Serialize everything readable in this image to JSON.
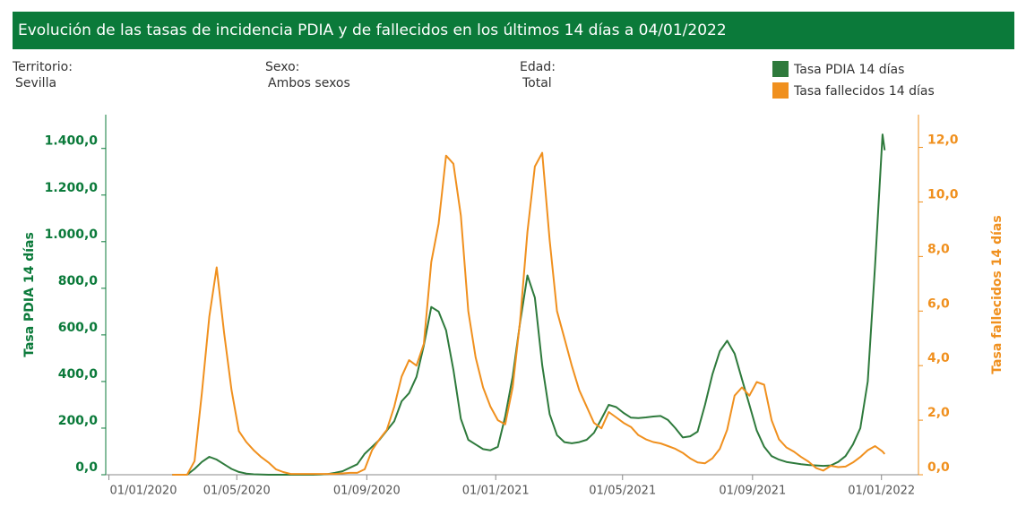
{
  "chart_data": {
    "type": "line",
    "title": "Evolución de las tasas de incidencia PDIA y de fallecidos en los últimos 14 días a 04/01/2022",
    "filters": [
      {
        "label": "Territorio:",
        "value": "Sevilla"
      },
      {
        "label": "Sexo:",
        "value": "Ambos sexos"
      },
      {
        "label": "Edad:",
        "value": "Total"
      }
    ],
    "ylabel": "Tasa PDIA 14 días",
    "y2label": "Tasa fallecidos 14 días",
    "x": [
      "2020-03-01",
      "2020-03-08",
      "2020-03-15",
      "2020-03-22",
      "2020-03-29",
      "2020-04-05",
      "2020-04-12",
      "2020-04-19",
      "2020-04-26",
      "2020-05-03",
      "2020-05-10",
      "2020-05-17",
      "2020-05-24",
      "2020-05-31",
      "2020-06-07",
      "2020-06-14",
      "2020-06-21",
      "2020-06-28",
      "2020-07-05",
      "2020-07-12",
      "2020-07-19",
      "2020-07-26",
      "2020-08-02",
      "2020-08-09",
      "2020-08-16",
      "2020-08-23",
      "2020-08-30",
      "2020-09-06",
      "2020-09-13",
      "2020-09-20",
      "2020-09-27",
      "2020-10-04",
      "2020-10-11",
      "2020-10-18",
      "2020-10-25",
      "2020-11-01",
      "2020-11-08",
      "2020-11-15",
      "2020-11-22",
      "2020-11-29",
      "2020-12-06",
      "2020-12-13",
      "2020-12-20",
      "2020-12-27",
      "2021-01-03",
      "2021-01-10",
      "2021-01-17",
      "2021-01-24",
      "2021-01-31",
      "2021-02-07",
      "2021-02-14",
      "2021-02-21",
      "2021-02-28",
      "2021-03-07",
      "2021-03-14",
      "2021-03-21",
      "2021-03-28",
      "2021-04-04",
      "2021-04-11",
      "2021-04-18",
      "2021-04-25",
      "2021-05-02",
      "2021-05-09",
      "2021-05-16",
      "2021-05-23",
      "2021-05-30",
      "2021-06-06",
      "2021-06-13",
      "2021-06-20",
      "2021-06-27",
      "2021-07-04",
      "2021-07-11",
      "2021-07-18",
      "2021-07-25",
      "2021-08-01",
      "2021-08-08",
      "2021-08-15",
      "2021-08-22",
      "2021-08-29",
      "2021-09-05",
      "2021-09-12",
      "2021-09-19",
      "2021-09-26",
      "2021-10-03",
      "2021-10-10",
      "2021-10-17",
      "2021-10-24",
      "2021-10-31",
      "2021-11-07",
      "2021-11-14",
      "2021-11-21",
      "2021-11-28",
      "2021-12-05",
      "2021-12-12",
      "2021-12-19",
      "2021-12-26",
      "2022-01-02",
      "2022-01-04"
    ],
    "series": [
      {
        "name": "Tasa PDIA 14 días",
        "color": "#2e7a3c",
        "axis": "y",
        "values": [
          0,
          0,
          0,
          25,
          55,
          77,
          65,
          45,
          25,
          12,
          5,
          2,
          1,
          0,
          0,
          0,
          0,
          0,
          0,
          0,
          1,
          3,
          8,
          15,
          30,
          45,
          90,
          120,
          150,
          190,
          230,
          315,
          350,
          420,
          555,
          720,
          700,
          620,
          450,
          240,
          150,
          130,
          110,
          105,
          120,
          250,
          420,
          650,
          855,
          760,
          470,
          260,
          170,
          140,
          135,
          140,
          150,
          180,
          240,
          300,
          290,
          265,
          245,
          243,
          246,
          250,
          252,
          235,
          200,
          160,
          165,
          185,
          300,
          430,
          530,
          575,
          520,
          410,
          300,
          190,
          120,
          80,
          65,
          55,
          50,
          45,
          42,
          40,
          38,
          40,
          55,
          80,
          130,
          200,
          400,
          900,
          1460,
          1392
        ]
      },
      {
        "name": "Tasa fallecidos 14 días",
        "color": "#f0901e",
        "axis": "y2",
        "values": [
          0,
          0,
          0,
          0.5,
          3.0,
          5.8,
          7.6,
          5.2,
          3.1,
          1.6,
          1.2,
          0.9,
          0.65,
          0.45,
          0.2,
          0.1,
          0.03,
          0.03,
          0.03,
          0.03,
          0.03,
          0.03,
          0.03,
          0.05,
          0.07,
          0.07,
          0.2,
          0.9,
          1.3,
          1.65,
          2.5,
          3.6,
          4.2,
          4.0,
          4.8,
          7.8,
          9.2,
          11.7,
          11.4,
          9.5,
          6.0,
          4.3,
          3.2,
          2.5,
          2.0,
          1.85,
          3.2,
          5.6,
          8.9,
          11.3,
          11.8,
          8.6,
          6.0,
          5.0,
          4.0,
          3.1,
          2.5,
          1.9,
          1.7,
          2.3,
          2.1,
          1.9,
          1.75,
          1.45,
          1.3,
          1.2,
          1.15,
          1.05,
          0.95,
          0.8,
          0.6,
          0.45,
          0.42,
          0.6,
          0.95,
          1.65,
          2.9,
          3.2,
          2.9,
          3.4,
          3.3,
          2.0,
          1.3,
          1.0,
          0.85,
          0.65,
          0.48,
          0.25,
          0.15,
          0.33,
          0.28,
          0.3,
          0.45,
          0.65,
          0.9,
          1.05,
          0.85,
          0.76
        ]
      }
    ],
    "xlim": [
      "2019-12-29",
      "2022-02-05"
    ],
    "xticks": [
      {
        "value": "2020-01-01",
        "label": "01/01/2020"
      },
      {
        "value": "2020-05-01",
        "label": "01/05/2020"
      },
      {
        "value": "2020-09-01",
        "label": "01/09/2020"
      },
      {
        "value": "2021-01-01",
        "label": "01/01/2021"
      },
      {
        "value": "2021-05-01",
        "label": "01/05/2021"
      },
      {
        "value": "2021-09-01",
        "label": "01/09/2021"
      },
      {
        "value": "2022-01-01",
        "label": "01/01/2022"
      }
    ],
    "ylim": [
      0,
      1545
    ],
    "yticks": [
      {
        "value": 0,
        "label": "0,0"
      },
      {
        "value": 200,
        "label": "200,0"
      },
      {
        "value": 400,
        "label": "400,0"
      },
      {
        "value": 600,
        "label": "600,0"
      },
      {
        "value": 800,
        "label": "800,0"
      },
      {
        "value": 1000,
        "label": "1.000,0"
      },
      {
        "value": 1200,
        "label": "1.200,0"
      },
      {
        "value": 1400,
        "label": "1.400,0"
      }
    ],
    "y2lim": [
      0,
      13.2
    ],
    "y2ticks": [
      {
        "value": 0,
        "label": "0,0"
      },
      {
        "value": 2,
        "label": "2,0"
      },
      {
        "value": 4,
        "label": "4,0"
      },
      {
        "value": 6,
        "label": "6,0"
      },
      {
        "value": 8,
        "label": "8,0"
      },
      {
        "value": 10,
        "label": "10,0"
      },
      {
        "value": 12,
        "label": "12,0"
      }
    ],
    "ycolor": "#0b7a3a",
    "header_color": "#0b7a3a",
    "grid": false,
    "legend": "top-right"
  }
}
